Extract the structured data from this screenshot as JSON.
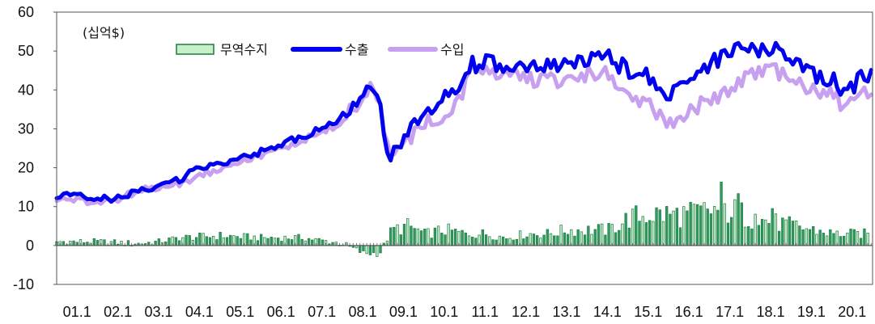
{
  "chart_data": {
    "type": "bar+line",
    "unit_label": "(십억$)",
    "ylim": [
      -10,
      60
    ],
    "yticks": [
      "60",
      "50",
      "40",
      "30",
      "20",
      "10",
      "0",
      "-10"
    ],
    "xtick_labels": [
      "01.1",
      "02.1",
      "03.1",
      "04.1",
      "05.1",
      "06.1",
      "07.1",
      "08.1",
      "09.1",
      "10.1",
      "11.1",
      "12.1",
      "13.1",
      "14.1",
      "15.1",
      "16.1",
      "17.1",
      "18.1",
      "19.1",
      "20.1"
    ],
    "x_start_year": 2001,
    "gridlines": false,
    "legend": {
      "position": "top-center",
      "items": [
        {
          "key": "balance",
          "label": "무역수지"
        },
        {
          "key": "exports",
          "label": "수출"
        },
        {
          "key": "imports",
          "label": "수입"
        }
      ]
    },
    "colors": {
      "exports": "#0000ee",
      "imports": "#c8a0f0",
      "balance_fill": "#2e9e5e",
      "balance_light": "#c8f0c8",
      "balance_stroke": "#1e7a44"
    },
    "series": [
      {
        "name": "수출",
        "key": "exports",
        "anchors": [
          [
            2001.0,
            13
          ],
          [
            2002.0,
            12
          ],
          [
            2002.5,
            12
          ],
          [
            2003.0,
            14
          ],
          [
            2003.5,
            15
          ],
          [
            2004.0,
            17
          ],
          [
            2004.5,
            20
          ],
          [
            2005.0,
            21
          ],
          [
            2005.5,
            23
          ],
          [
            2006.0,
            24
          ],
          [
            2006.5,
            26
          ],
          [
            2007.0,
            28
          ],
          [
            2007.5,
            30
          ],
          [
            2008.0,
            33
          ],
          [
            2008.4,
            37
          ],
          [
            2008.7,
            40
          ],
          [
            2008.9,
            36
          ],
          [
            2009.1,
            22
          ],
          [
            2009.4,
            27
          ],
          [
            2009.8,
            31
          ],
          [
            2010.0,
            33
          ],
          [
            2010.5,
            38
          ],
          [
            2010.9,
            42
          ],
          [
            2011.0,
            46
          ],
          [
            2011.5,
            47
          ],
          [
            2012.0,
            46
          ],
          [
            2012.5,
            45
          ],
          [
            2013.0,
            46
          ],
          [
            2013.5,
            46
          ],
          [
            2014.0,
            48
          ],
          [
            2014.5,
            48
          ],
          [
            2015.0,
            45
          ],
          [
            2015.5,
            43
          ],
          [
            2016.0,
            39
          ],
          [
            2016.5,
            42
          ],
          [
            2017.0,
            47
          ],
          [
            2017.5,
            50
          ],
          [
            2018.0,
            50
          ],
          [
            2018.5,
            51
          ],
          [
            2019.0,
            48
          ],
          [
            2019.5,
            44
          ],
          [
            2020.0,
            43
          ],
          [
            2020.3,
            38
          ],
          [
            2020.6,
            43
          ]
        ]
      },
      {
        "name": "수입",
        "key": "imports",
        "anchors": [
          [
            2001.0,
            12
          ],
          [
            2002.0,
            11
          ],
          [
            2002.5,
            12
          ],
          [
            2003.0,
            14
          ],
          [
            2003.5,
            15
          ],
          [
            2004.0,
            16
          ],
          [
            2004.5,
            18
          ],
          [
            2005.0,
            20
          ],
          [
            2005.5,
            22
          ],
          [
            2006.0,
            23
          ],
          [
            2006.5,
            25
          ],
          [
            2007.0,
            27
          ],
          [
            2007.5,
            29
          ],
          [
            2008.0,
            32
          ],
          [
            2008.4,
            37
          ],
          [
            2008.7,
            41
          ],
          [
            2008.9,
            36
          ],
          [
            2009.1,
            24
          ],
          [
            2009.4,
            25
          ],
          [
            2009.8,
            29
          ],
          [
            2010.0,
            31
          ],
          [
            2010.5,
            34
          ],
          [
            2010.9,
            38
          ],
          [
            2011.0,
            44
          ],
          [
            2011.5,
            45
          ],
          [
            2012.0,
            44
          ],
          [
            2012.5,
            43
          ],
          [
            2013.0,
            42
          ],
          [
            2013.5,
            43
          ],
          [
            2014.0,
            44
          ],
          [
            2014.5,
            44
          ],
          [
            2015.0,
            37
          ],
          [
            2015.5,
            36
          ],
          [
            2016.0,
            32
          ],
          [
            2016.5,
            34
          ],
          [
            2017.0,
            38
          ],
          [
            2017.5,
            40
          ],
          [
            2018.0,
            44
          ],
          [
            2018.5,
            45
          ],
          [
            2019.0,
            42
          ],
          [
            2019.5,
            40
          ],
          [
            2020.0,
            39
          ],
          [
            2020.3,
            35
          ],
          [
            2020.6,
            39
          ]
        ]
      },
      {
        "name": "무역수지",
        "key": "balance",
        "note": "monthly",
        "anchors": [
          [
            2001.0,
            1
          ],
          [
            2002.0,
            1
          ],
          [
            2003.0,
            0.5
          ],
          [
            2003.5,
            1
          ],
          [
            2004.0,
            2
          ],
          [
            2005.0,
            2.5
          ],
          [
            2006.0,
            2
          ],
          [
            2007.0,
            2
          ],
          [
            2008.0,
            0.5
          ],
          [
            2008.5,
            -2
          ],
          [
            2008.9,
            -2
          ],
          [
            2009.2,
            4
          ],
          [
            2009.6,
            5
          ],
          [
            2010.0,
            3
          ],
          [
            2010.5,
            4
          ],
          [
            2011.0,
            3
          ],
          [
            2011.5,
            3
          ],
          [
            2012.0,
            2
          ],
          [
            2012.5,
            3
          ],
          [
            2013.0,
            3
          ],
          [
            2013.5,
            4
          ],
          [
            2014.0,
            4
          ],
          [
            2014.5,
            4
          ],
          [
            2015.0,
            7
          ],
          [
            2015.5,
            8
          ],
          [
            2016.0,
            8
          ],
          [
            2016.5,
            8
          ],
          [
            2017.0,
            9
          ],
          [
            2017.5,
            9
          ],
          [
            2018.0,
            7
          ],
          [
            2018.5,
            6
          ],
          [
            2019.0,
            5
          ],
          [
            2019.5,
            4
          ],
          [
            2020.0,
            3
          ],
          [
            2020.3,
            3
          ],
          [
            2020.6,
            3
          ]
        ]
      }
    ]
  }
}
